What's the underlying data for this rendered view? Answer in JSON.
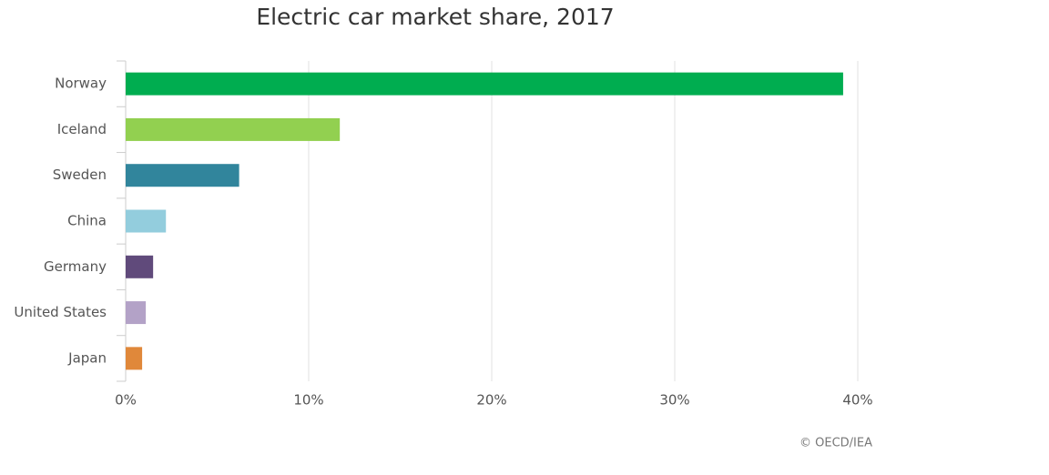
{
  "chart_data": {
    "type": "bar",
    "orientation": "horizontal",
    "title": "Electric car market share, 2017",
    "categories": [
      "Norway",
      "Iceland",
      "Sweden",
      "China",
      "Germany",
      "United States",
      "Japan"
    ],
    "values": [
      39.2,
      11.7,
      6.2,
      2.2,
      1.5,
      1.1,
      0.9
    ],
    "colors": [
      "#00ad50",
      "#92d050",
      "#31859c",
      "#93cddd",
      "#604a7b",
      "#b3a2c7",
      "#e0883a"
    ],
    "xlim": [
      0,
      40
    ],
    "xticks": [
      {
        "value": 0,
        "label": "0%"
      },
      {
        "value": 10,
        "label": "10%"
      },
      {
        "value": 20,
        "label": "20%"
      },
      {
        "value": 30,
        "label": "30%"
      },
      {
        "value": 40,
        "label": "40%"
      }
    ],
    "grid": true,
    "credit": "© OECD/IEA"
  }
}
